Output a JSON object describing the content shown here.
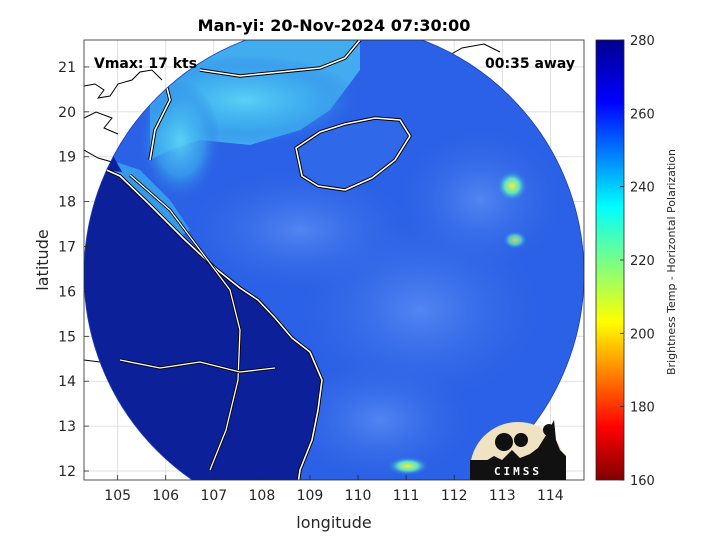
{
  "title": "Man-yi: 20-Nov-2024 07:30:00",
  "annotations": {
    "vmax": "Vmax: 17 kts",
    "time_away": "00:35 away"
  },
  "axes": {
    "xlabel": "longitude",
    "ylabel": "latitude",
    "xlim": [
      104.3,
      114.7
    ],
    "ylim": [
      11.8,
      21.6
    ],
    "xticks": [
      "105",
      "106",
      "107",
      "108",
      "109",
      "110",
      "111",
      "112",
      "113",
      "114"
    ],
    "yticks": [
      "12",
      "13",
      "14",
      "15",
      "16",
      "17",
      "18",
      "19",
      "20",
      "21"
    ],
    "grid": true
  },
  "colorbar": {
    "label": "Brightness Temp - Horizontal Polarization",
    "ticks": [
      "160",
      "180",
      "200",
      "220",
      "240",
      "260",
      "280"
    ],
    "range": [
      160,
      280
    ],
    "colormap": "jet"
  },
  "swath": {
    "shape": "circle",
    "center": [
      109.5,
      16.7
    ],
    "radius_lon": 5.2
  },
  "logo": {
    "text": "CIMSS"
  },
  "colors": {
    "land": "#0a1f9a",
    "ocean": "#2a5fe6",
    "coastal_cyan": "#39b4f0",
    "warm_spot": "#b8f040"
  },
  "chart_data": {
    "type": "heatmap",
    "title": "Man-yi: 20-Nov-2024 07:30:00",
    "xlabel": "longitude",
    "ylabel": "latitude",
    "xlim": [
      104.3,
      114.7
    ],
    "ylim": [
      11.8,
      21.6
    ],
    "clim": [
      160,
      280
    ]
  }
}
